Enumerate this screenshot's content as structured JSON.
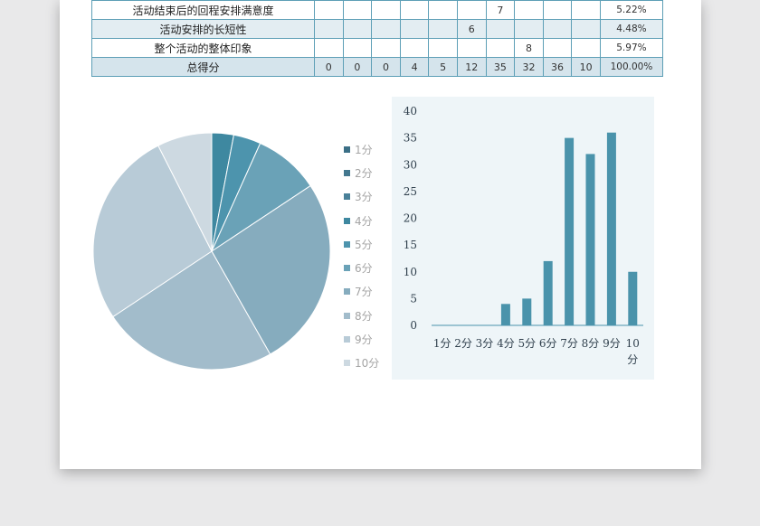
{
  "table": {
    "rows": [
      {
        "label": "活动结束后的回程安排满意度",
        "cells": [
          "",
          "",
          "",
          "",
          "",
          "",
          "7",
          "",
          "",
          "",
          ""
        ],
        "pct": "5.22%"
      },
      {
        "label": "活动安排的长短性",
        "cells": [
          "",
          "",
          "",
          "",
          "",
          "6",
          "",
          "",
          "",
          "",
          ""
        ],
        "pct": "4.48%"
      },
      {
        "label": "整个活动的整体印象",
        "cells": [
          "",
          "",
          "",
          "",
          "",
          "",
          "",
          "8",
          "",
          "",
          ""
        ],
        "pct": "5.97%"
      },
      {
        "label": "总得分",
        "cells": [
          "0",
          "0",
          "0",
          "4",
          "5",
          "12",
          "35",
          "32",
          "36",
          "10"
        ],
        "pct": "100.00%"
      }
    ]
  },
  "chart_data": [
    {
      "type": "pie",
      "categories": [
        "1分",
        "2分",
        "3分",
        "4分",
        "5分",
        "6分",
        "7分",
        "8分",
        "9分",
        "10分"
      ],
      "values": [
        0,
        0,
        0,
        4,
        5,
        12,
        35,
        32,
        36,
        10
      ],
      "colors": [
        "#3b6f86",
        "#43788f",
        "#4a8199",
        "#3e88a0",
        "#4d94ad",
        "#6aa2b7",
        "#86acbe",
        "#a2bccb",
        "#b8cbd7",
        "#cdd9e1"
      ],
      "legend_position": "right"
    },
    {
      "type": "bar",
      "categories": [
        "1分",
        "2分",
        "3分",
        "4分",
        "5分",
        "6分",
        "7分",
        "8分",
        "9分",
        "10分"
      ],
      "values": [
        0,
        0,
        0,
        4,
        5,
        12,
        35,
        32,
        36,
        10
      ],
      "ylim": [
        0,
        40
      ],
      "yticks": [
        0,
        5,
        10,
        15,
        20,
        25,
        30,
        35,
        40
      ],
      "bar_color": "#4a93ab",
      "grid": false
    }
  ]
}
